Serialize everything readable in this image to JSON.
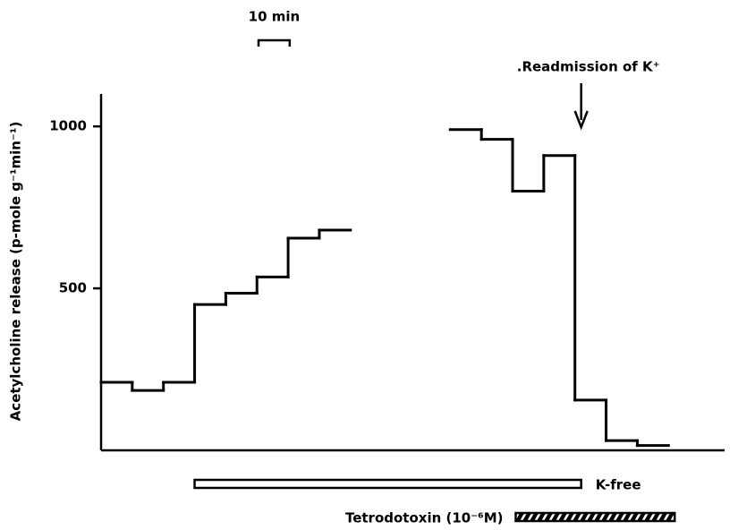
{
  "chart_data": {
    "type": "step",
    "y_label": "Acetylcholine release (p-mole g⁻¹min⁻¹)",
    "ylim": [
      0,
      1100
    ],
    "yticks": [
      500,
      1000
    ],
    "xlim": [
      0,
      200
    ],
    "series": [
      {
        "color": "#000000",
        "bins": [
          0,
          10,
          20,
          30,
          40,
          50,
          60,
          70,
          80
        ],
        "values": [
          210,
          185,
          210,
          450,
          485,
          535,
          655,
          680
        ]
      },
      {
        "color": "#000000",
        "bins": [
          112,
          122,
          132,
          142,
          152,
          162,
          172,
          182
        ],
        "values": [
          990,
          960,
          800,
          910,
          155,
          30,
          15
        ]
      }
    ],
    "scale_bar": {
      "label": "10 min",
      "length": 10
    },
    "periods": [
      {
        "label": "K-free",
        "start": 30,
        "end": 154,
        "style": "open"
      },
      {
        "label": "Tetrodotoxin (10⁻⁶M)",
        "start": 133,
        "end": 184,
        "style": "hatched"
      }
    ],
    "annotation": {
      "text": ".Readmission of K⁺",
      "x": 154
    }
  }
}
